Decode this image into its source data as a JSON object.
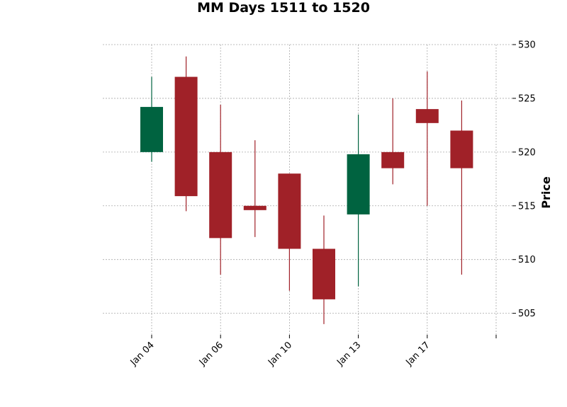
{
  "chart_data": {
    "type": "candlestick",
    "title": "MM Days 1511 to 1520",
    "ylabel": "Price",
    "xlabel": "",
    "y_axis_side": "right",
    "ylim": [
      503,
      530
    ],
    "y_ticks": [
      505,
      510,
      515,
      520,
      525,
      530
    ],
    "x_ticks": [
      {
        "label": "Jan 04",
        "index": 0
      },
      {
        "label": "Jan 06",
        "index": 2
      },
      {
        "label": "Jan 10",
        "index": 4
      },
      {
        "label": "Jan 13",
        "index": 6
      },
      {
        "label": "Jan 17",
        "index": 8
      },
      {
        "label": "",
        "index": 10
      }
    ],
    "grid": true,
    "up_color": "#006340",
    "down_color": "#a02128",
    "candles": [
      {
        "open": 520.0,
        "high": 527.0,
        "low": 519.1,
        "close": 524.2
      },
      {
        "open": 527.0,
        "high": 528.9,
        "low": 514.5,
        "close": 515.9
      },
      {
        "open": 520.0,
        "high": 524.4,
        "low": 508.6,
        "close": 512.0
      },
      {
        "open": 515.0,
        "high": 521.1,
        "low": 512.1,
        "close": 514.6
      },
      {
        "open": 518.0,
        "high": 518.0,
        "low": 507.1,
        "close": 511.0
      },
      {
        "open": 511.0,
        "high": 514.1,
        "low": 504.0,
        "close": 506.3
      },
      {
        "open": 514.2,
        "high": 523.5,
        "low": 507.5,
        "close": 519.8
      },
      {
        "open": 520.0,
        "high": 525.0,
        "low": 517.0,
        "close": 518.5
      },
      {
        "open": 524.0,
        "high": 527.5,
        "low": 515.0,
        "close": 522.7
      },
      {
        "open": 522.0,
        "high": 524.8,
        "low": 508.6,
        "close": 518.5
      }
    ]
  }
}
